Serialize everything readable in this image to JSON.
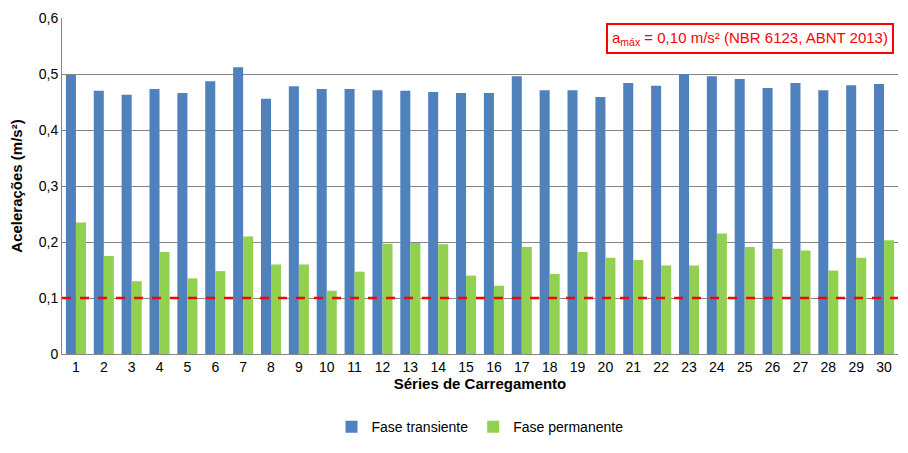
{
  "chart_data": {
    "type": "bar",
    "x_label": "Séries de Carregamento",
    "y_label": "Acelerações (m/s²)",
    "categories": [
      "1",
      "2",
      "3",
      "4",
      "5",
      "6",
      "7",
      "8",
      "9",
      "10",
      "11",
      "12",
      "13",
      "14",
      "15",
      "16",
      "17",
      "18",
      "19",
      "20",
      "21",
      "22",
      "23",
      "24",
      "25",
      "26",
      "27",
      "28",
      "29",
      "30"
    ],
    "series": [
      {
        "name": "Fase transiente",
        "color": "#4f81bd",
        "values": [
          0.498,
          0.47,
          0.463,
          0.473,
          0.466,
          0.487,
          0.512,
          0.456,
          0.478,
          0.473,
          0.473,
          0.471,
          0.47,
          0.468,
          0.466,
          0.466,
          0.496,
          0.471,
          0.471,
          0.459,
          0.484,
          0.479,
          0.5,
          0.496,
          0.491,
          0.475,
          0.484,
          0.471,
          0.48,
          0.482
        ]
      },
      {
        "name": "Fase permanente",
        "color": "#92d050",
        "values": [
          0.235,
          0.175,
          0.13,
          0.182,
          0.135,
          0.148,
          0.21,
          0.16,
          0.16,
          0.113,
          0.147,
          0.197,
          0.198,
          0.196,
          0.14,
          0.122,
          0.191,
          0.143,
          0.182,
          0.172,
          0.168,
          0.158,
          0.158,
          0.215,
          0.191,
          0.188,
          0.185,
          0.149,
          0.172,
          0.203
        ]
      }
    ],
    "ylim": [
      0,
      0.6
    ],
    "yticks": [
      0,
      {
        "value": 0.1,
        "label": "0,1"
      },
      {
        "value": 0.2,
        "label": "0,2"
      },
      {
        "value": 0.3,
        "label": "0,3"
      },
      {
        "value": 0.4,
        "label": "0,4"
      },
      {
        "value": 0.5,
        "label": "0,5"
      },
      {
        "value": 0.6,
        "label": "0,6"
      }
    ],
    "grid": true,
    "legend": "bottom",
    "reference_line": {
      "value": 0.1,
      "color": "#ff0000",
      "line_style": "dashed"
    },
    "annotation": {
      "base": "a",
      "subscript": "máx",
      "text": "= 0,10 m/s² (NBR 6123, ABNT 2013)",
      "color": "#ff0000"
    }
  }
}
